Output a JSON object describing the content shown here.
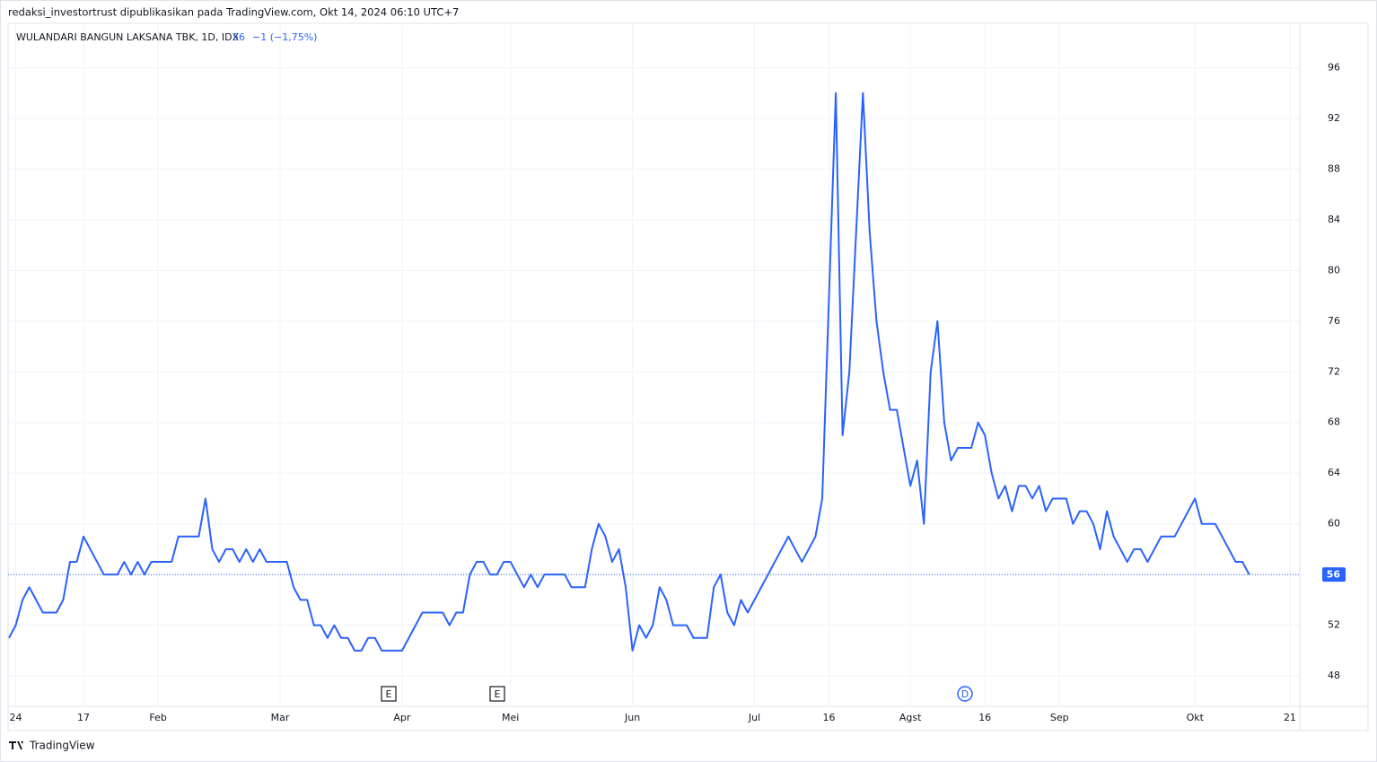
{
  "header": {
    "attribution": "redaksi_investortrust dipublikasikan pada TradingView.com, Okt 14, 2024 06:10 UTC+7",
    "footer": "TradingView"
  },
  "chart_data": {
    "type": "line",
    "title": "WULANDARI BANGUN LAKSANA TBK, 1D, IDX",
    "last_price": 56,
    "change": "−1 (−1,75%)",
    "event_markers": [
      "E",
      "E",
      "D"
    ],
    "categories": [
      null,
      "24",
      null,
      null,
      null,
      null,
      null,
      null,
      null,
      null,
      null,
      "17",
      null,
      null,
      null,
      null,
      null,
      null,
      null,
      null,
      null,
      null,
      "Feb",
      null,
      null,
      null,
      null,
      null,
      null,
      null,
      null,
      null,
      null,
      null,
      null,
      null,
      null,
      null,
      null,
      null,
      "Mar",
      null,
      null,
      null,
      null,
      null,
      null,
      null,
      null,
      null,
      null,
      null,
      null,
      null,
      null,
      null,
      null,
      null,
      "Apr",
      null,
      null,
      null,
      null,
      null,
      null,
      null,
      null,
      null,
      null,
      null,
      null,
      null,
      null,
      null,
      "Mei",
      null,
      null,
      null,
      null,
      null,
      null,
      null,
      null,
      null,
      null,
      null,
      null,
      null,
      null,
      null,
      null,
      null,
      "Jun",
      null,
      null,
      null,
      null,
      null,
      null,
      null,
      null,
      null,
      null,
      null,
      null,
      null,
      null,
      null,
      null,
      null,
      "Jul",
      null,
      null,
      null,
      null,
      null,
      null,
      null,
      null,
      null,
      null,
      "16",
      null,
      null,
      null,
      null,
      null,
      null,
      null,
      null,
      null,
      null,
      null,
      "Agst",
      null,
      null,
      null,
      null,
      null,
      null,
      null,
      null,
      null,
      null,
      "16",
      null,
      null,
      null,
      null,
      null,
      null,
      null,
      null,
      null,
      null,
      "Sep",
      null,
      null,
      null,
      null,
      null,
      null,
      null,
      null,
      null,
      null,
      null,
      null,
      null,
      null,
      null,
      null,
      null,
      null,
      null,
      "Okt",
      null,
      null,
      null,
      null,
      null,
      null,
      null,
      null,
      null,
      null,
      null,
      null,
      null,
      "21",
      null
    ],
    "series": [
      {
        "name": "WULANDARI BANGUN LAKSANA TBK",
        "color": "#2962ff",
        "values": [
          51,
          52,
          54,
          55,
          54,
          53,
          53,
          53,
          54,
          57,
          57,
          59,
          58,
          57,
          56,
          56,
          56,
          57,
          56,
          57,
          56,
          57,
          57,
          57,
          57,
          59,
          59,
          59,
          59,
          62,
          58,
          57,
          58,
          58,
          57,
          58,
          57,
          58,
          57,
          57,
          57,
          57,
          55,
          54,
          54,
          52,
          52,
          51,
          52,
          51,
          51,
          50,
          50,
          51,
          51,
          50,
          50,
          50,
          50,
          51,
          52,
          53,
          53,
          53,
          53,
          52,
          53,
          53,
          56,
          57,
          57,
          56,
          56,
          57,
          57,
          56,
          55,
          56,
          55,
          56,
          56,
          56,
          56,
          55,
          55,
          55,
          58,
          60,
          59,
          57,
          58,
          55,
          50,
          52,
          51,
          52,
          55,
          54,
          52,
          52,
          52,
          51,
          51,
          51,
          55,
          56,
          53,
          52,
          54,
          53,
          54,
          55,
          56,
          57,
          58,
          59,
          58,
          57,
          58,
          59,
          62,
          78,
          94,
          67,
          72,
          83,
          94,
          83,
          76,
          72,
          69,
          69,
          66,
          63,
          65,
          60,
          72,
          76,
          68,
          65,
          66,
          66,
          66,
          68,
          67,
          64,
          62,
          63,
          61,
          63,
          63,
          62,
          63,
          61,
          62,
          62,
          62,
          60,
          61,
          61,
          60,
          58,
          61,
          59,
          58,
          57,
          58,
          58,
          57,
          58,
          59,
          59,
          59,
          60,
          61,
          62,
          60,
          60,
          60,
          59,
          58,
          57,
          57,
          56,
          null,
          null,
          null,
          null,
          null,
          null,
          null
        ]
      }
    ],
    "ylim": [
      45.6,
      99.5
    ],
    "yticks": [
      48,
      52,
      56,
      60,
      64,
      68,
      72,
      76,
      80,
      84,
      88,
      92,
      96
    ],
    "grid": true
  }
}
